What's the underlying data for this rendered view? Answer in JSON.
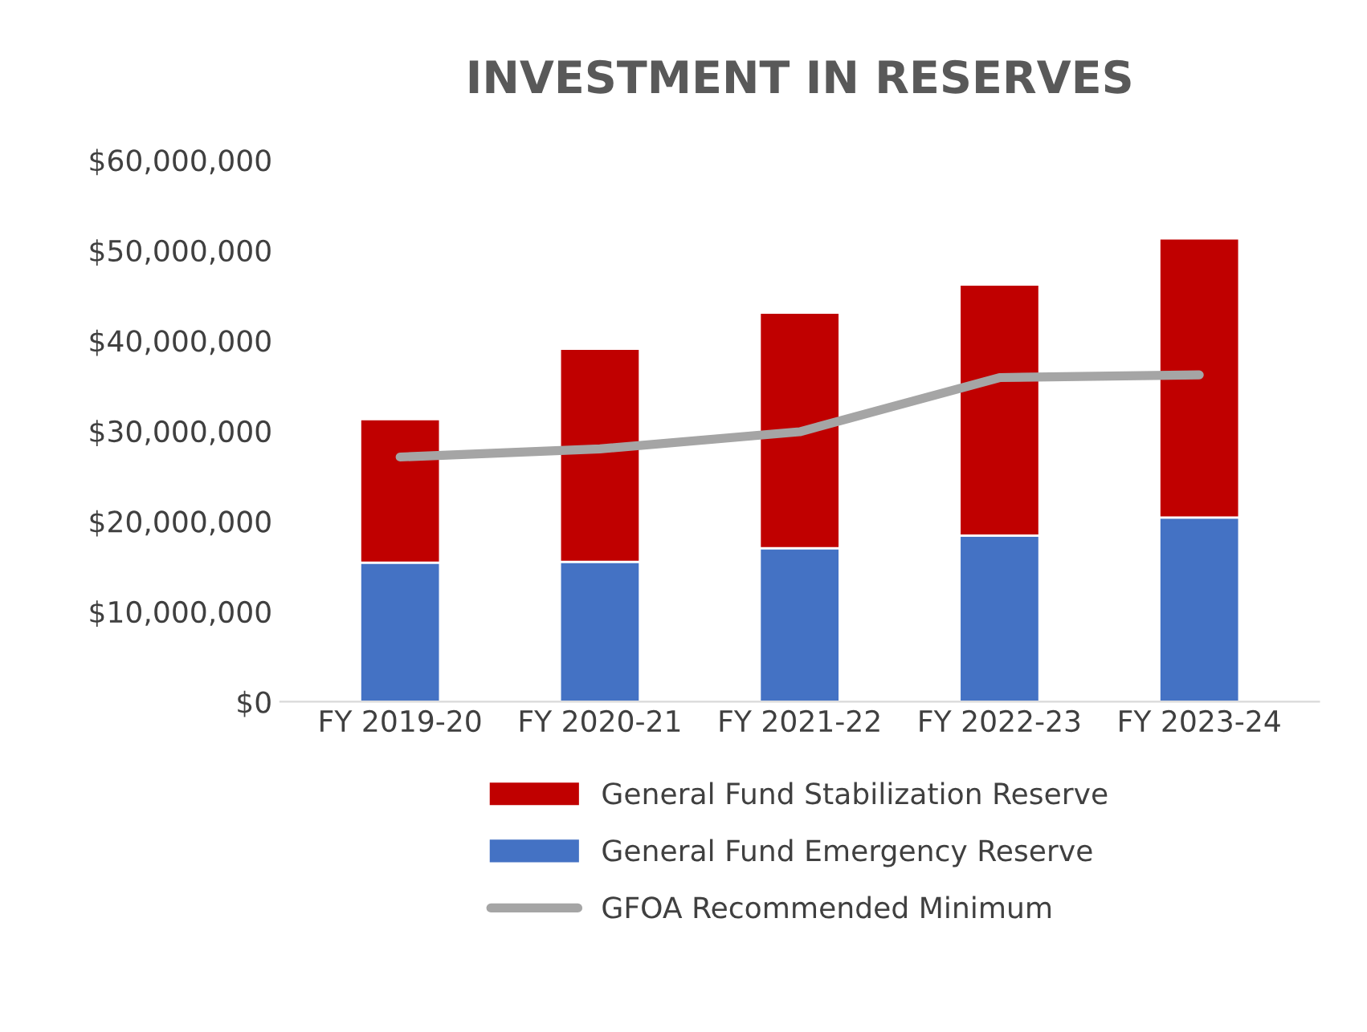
{
  "chart_data": {
    "type": "bar",
    "title": "INVESTMENT IN RESERVES",
    "stacked": true,
    "categories": [
      "FY 2019-20",
      "FY 2020-21",
      "FY 2021-22",
      "FY 2022-23",
      "FY 2023-24"
    ],
    "series": [
      {
        "name": "General Fund Emergency Reserve",
        "color": "#4472c4",
        "values": [
          15400000,
          15500000,
          17000000,
          18400000,
          20400000
        ]
      },
      {
        "name": "General Fund Stabilization Reserve",
        "color": "#c00000",
        "values": [
          15900000,
          23600000,
          26100000,
          27800000,
          30900000
        ]
      },
      {
        "name": "GFOA Recommended Minimum",
        "color": "#a5a5a5",
        "type": "line",
        "values": [
          27100000,
          28000000,
          29900000,
          35900000,
          36200000
        ]
      }
    ],
    "ylim": [
      0,
      60000000
    ],
    "yticks": [
      {
        "value": 0,
        "label": "$0"
      },
      {
        "value": 10000000,
        "label": "$10,000,000"
      },
      {
        "value": 20000000,
        "label": "$20,000,000"
      },
      {
        "value": 30000000,
        "label": "$30,000,000"
      },
      {
        "value": 40000000,
        "label": "$40,000,000"
      },
      {
        "value": 50000000,
        "label": "$50,000,000"
      },
      {
        "value": 60000000,
        "label": "$60,000,000"
      }
    ],
    "grid": false,
    "legend": "bottom"
  }
}
